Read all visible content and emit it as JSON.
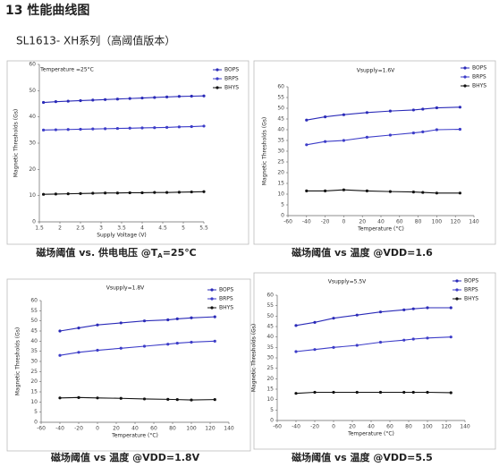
{
  "header": {
    "title": "13 性能曲线图",
    "subtitle": "SL1613- XH系列（高阈值版本）"
  },
  "chart_data": [
    {
      "type": "line",
      "title": "Temperature =25°C",
      "xlabel": "Supply Voltage (V)",
      "ylabel": "Magnetic Thresholds (Gs)",
      "caption": "磁场阈值 vs. 供电电压 @T",
      "caption_subscript": "A",
      "caption_end": "=25℃",
      "x": [
        1.6,
        1.9,
        2.2,
        2.5,
        2.8,
        3.1,
        3.4,
        3.7,
        4.0,
        4.3,
        4.6,
        4.9,
        5.2,
        5.5
      ],
      "series": [
        {
          "name": "BOPS",
          "color": "#2a2ab8",
          "values": [
            45.5,
            45.8,
            46.0,
            46.2,
            46.4,
            46.6,
            46.8,
            47.0,
            47.2,
            47.4,
            47.6,
            47.8,
            47.9,
            48.0
          ]
        },
        {
          "name": "BRPS",
          "color": "#3c3cc8",
          "values": [
            35.0,
            35.1,
            35.2,
            35.3,
            35.4,
            35.5,
            35.6,
            35.7,
            35.8,
            35.9,
            36.0,
            36.2,
            36.3,
            36.5
          ]
        },
        {
          "name": "BHYS",
          "color": "#111111",
          "values": [
            10.5,
            10.6,
            10.7,
            10.8,
            10.9,
            11.0,
            11.0,
            11.1,
            11.1,
            11.2,
            11.2,
            11.3,
            11.4,
            11.5
          ]
        }
      ],
      "xlim": [
        1.5,
        5.5
      ],
      "xticks": [
        1.5,
        2.0,
        2.5,
        3.0,
        3.5,
        4.0,
        4.5,
        5.0,
        5.5
      ],
      "ylim": [
        0,
        60
      ],
      "yticks": [
        0,
        10,
        20,
        30,
        40,
        50,
        60
      ]
    },
    {
      "type": "line",
      "title": "Vsupply=1.6V",
      "xlabel": "Temperature (°C)",
      "ylabel": "Magnetic Thresholds (Gs)",
      "caption": "磁场阈值 vs 温度 @VDD=1.6",
      "x": [
        -40,
        -20,
        0,
        25,
        50,
        75,
        85,
        100,
        125
      ],
      "series": [
        {
          "name": "BOPS",
          "color": "#2a2ab8",
          "values": [
            44.5,
            46.0,
            47.0,
            48.0,
            48.7,
            49.2,
            49.6,
            50.2,
            50.5
          ]
        },
        {
          "name": "BRPS",
          "color": "#3c3cc8",
          "values": [
            33.0,
            34.5,
            35.0,
            36.5,
            37.5,
            38.5,
            39.0,
            40.0,
            40.2
          ]
        },
        {
          "name": "BHYS",
          "color": "#111111",
          "values": [
            11.5,
            11.5,
            12.0,
            11.5,
            11.2,
            11.0,
            10.8,
            10.5,
            10.5
          ]
        }
      ],
      "xlim": [
        -60,
        140
      ],
      "xticks": [
        -60,
        -40,
        -20,
        0,
        20,
        40,
        60,
        80,
        100,
        120,
        140
      ],
      "ylim": [
        0,
        60
      ],
      "yticks": [
        0,
        5,
        10,
        15,
        20,
        25,
        30,
        35,
        40,
        45,
        50,
        55,
        60
      ]
    },
    {
      "type": "line",
      "title": "Vsupply=1.8V",
      "xlabel": "Temperature (°C)",
      "ylabel": "Magnetic Thresholds (Gs)",
      "caption": "磁场阈值 vs 温度 @VDD=1.8V",
      "x": [
        -40,
        -20,
        0,
        25,
        50,
        75,
        85,
        100,
        125
      ],
      "series": [
        {
          "name": "BOPS",
          "color": "#2a2ab8",
          "values": [
            45.0,
            46.5,
            48.0,
            49.0,
            50.0,
            50.5,
            51.0,
            51.5,
            52.0
          ]
        },
        {
          "name": "BRPS",
          "color": "#3c3cc8",
          "values": [
            33.0,
            34.5,
            35.5,
            36.5,
            37.5,
            38.5,
            39.0,
            39.5,
            40.0
          ]
        },
        {
          "name": "BHYS",
          "color": "#111111",
          "values": [
            12.0,
            12.2,
            12.0,
            11.8,
            11.5,
            11.3,
            11.2,
            11.0,
            11.2
          ]
        }
      ],
      "xlim": [
        -60,
        140
      ],
      "xticks": [
        -60,
        -40,
        -20,
        0,
        20,
        40,
        60,
        80,
        100,
        120,
        140
      ],
      "ylim": [
        0,
        60
      ],
      "yticks": [
        0,
        5,
        10,
        15,
        20,
        25,
        30,
        35,
        40,
        45,
        50,
        55,
        60
      ]
    },
    {
      "type": "line",
      "title": "Vsupply=5.5V",
      "xlabel": "Temperature (°C)",
      "ylabel": "Magnetic Thresholds (Gs)",
      "caption": "磁场阈值 vs 温度 @VDD=5.5",
      "x": [
        -40,
        -20,
        0,
        25,
        50,
        75,
        85,
        100,
        125
      ],
      "series": [
        {
          "name": "BOPS",
          "color": "#2a2ab8",
          "values": [
            45.5,
            47.0,
            49.0,
            50.5,
            52.0,
            53.0,
            53.5,
            54.0,
            54.0
          ]
        },
        {
          "name": "BRPS",
          "color": "#3c3cc8",
          "values": [
            33.0,
            34.0,
            35.0,
            36.0,
            37.5,
            38.5,
            39.0,
            39.5,
            40.0
          ]
        },
        {
          "name": "BHYS",
          "color": "#111111",
          "values": [
            13.0,
            13.5,
            13.5,
            13.5,
            13.5,
            13.5,
            13.5,
            13.5,
            13.3
          ]
        }
      ],
      "xlim": [
        -60,
        140
      ],
      "xticks": [
        -60,
        -40,
        -20,
        0,
        20,
        40,
        60,
        80,
        100,
        120,
        140
      ],
      "ylim": [
        0,
        60
      ],
      "yticks": [
        0,
        5,
        10,
        15,
        20,
        25,
        30,
        35,
        40,
        45,
        50,
        55,
        60
      ]
    }
  ]
}
